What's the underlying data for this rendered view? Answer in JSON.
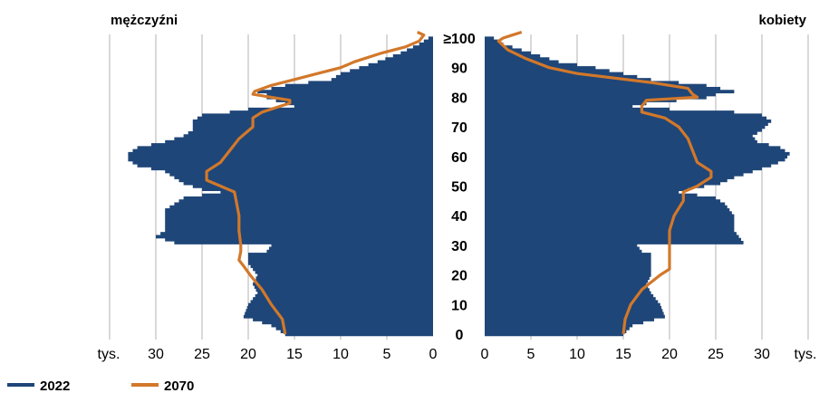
{
  "chart_data": {
    "type": "population-pyramid",
    "panels": {
      "left_title": "mężczyźni",
      "right_title": "kobiety"
    },
    "x_axis": {
      "unit": "tys.",
      "ticks_left": [
        "30",
        "25",
        "20",
        "15",
        "10",
        "5",
        "0"
      ],
      "ticks_right": [
        "0",
        "5",
        "10",
        "15",
        "20",
        "25",
        "30"
      ],
      "range": [
        0,
        35
      ]
    },
    "y_axis": {
      "labels": [
        "0",
        "10",
        "20",
        "30",
        "40",
        "50",
        "60",
        "70",
        "80",
        "90",
        "≥100"
      ],
      "range": [
        0,
        100
      ]
    },
    "legend": [
      {
        "label": "2022",
        "color": "#1f4678"
      },
      {
        "label": "2070",
        "color": "#d2782a"
      }
    ],
    "series_2022": {
      "men": [
        [
          0,
          16
        ],
        [
          3,
          17.5
        ],
        [
          6,
          20.5
        ],
        [
          10,
          20
        ],
        [
          14,
          19
        ],
        [
          17,
          19.5
        ],
        [
          20,
          19
        ],
        [
          24,
          20
        ],
        [
          27,
          20
        ],
        [
          28,
          18
        ],
        [
          30,
          17.5
        ],
        [
          31,
          28
        ],
        [
          33,
          30
        ],
        [
          35,
          29
        ],
        [
          37,
          29
        ],
        [
          40,
          29
        ],
        [
          42,
          29
        ],
        [
          44,
          28
        ],
        [
          46,
          27
        ],
        [
          47,
          25
        ],
        [
          48,
          23
        ],
        [
          49,
          25
        ],
        [
          51,
          27
        ],
        [
          53,
          28
        ],
        [
          55,
          29
        ],
        [
          57,
          32
        ],
        [
          59,
          33
        ],
        [
          61,
          33
        ],
        [
          63,
          32
        ],
        [
          65,
          29
        ],
        [
          67,
          27
        ],
        [
          69,
          26
        ],
        [
          72,
          26
        ],
        [
          74,
          25
        ],
        [
          75,
          22
        ],
        [
          76,
          20
        ],
        [
          77,
          15
        ],
        [
          78,
          16
        ],
        [
          80,
          18
        ],
        [
          81,
          18
        ],
        [
          82,
          19
        ],
        [
          84,
          16
        ],
        [
          86,
          11
        ],
        [
          88,
          10
        ],
        [
          90,
          8
        ],
        [
          92,
          6
        ],
        [
          95,
          3.5
        ],
        [
          98,
          1.5
        ],
        [
          100,
          0.5
        ]
      ],
      "women": [
        [
          0,
          15
        ],
        [
          3,
          16
        ],
        [
          6,
          19.5
        ],
        [
          10,
          19
        ],
        [
          14,
          18
        ],
        [
          17,
          17.5
        ],
        [
          20,
          18
        ],
        [
          24,
          18
        ],
        [
          27,
          18
        ],
        [
          28,
          17
        ],
        [
          30,
          16.5
        ],
        [
          31,
          28
        ],
        [
          33,
          27.5
        ],
        [
          35,
          27
        ],
        [
          37,
          27
        ],
        [
          40,
          27
        ],
        [
          42,
          26.5
        ],
        [
          44,
          26
        ],
        [
          46,
          25
        ],
        [
          47,
          23
        ],
        [
          48,
          21
        ],
        [
          49,
          22
        ],
        [
          51,
          25.5
        ],
        [
          53,
          27
        ],
        [
          55,
          29
        ],
        [
          57,
          31
        ],
        [
          59,
          32.5
        ],
        [
          61,
          33
        ],
        [
          63,
          32
        ],
        [
          65,
          29.5
        ],
        [
          67,
          29
        ],
        [
          69,
          30
        ],
        [
          72,
          31
        ],
        [
          74,
          30
        ],
        [
          75,
          27
        ],
        [
          76,
          20
        ],
        [
          77,
          16
        ],
        [
          78,
          17.5
        ],
        [
          80,
          24
        ],
        [
          81,
          25
        ],
        [
          82,
          27
        ],
        [
          84,
          24
        ],
        [
          86,
          18
        ],
        [
          88,
          15
        ],
        [
          90,
          12
        ],
        [
          92,
          8
        ],
        [
          95,
          5
        ],
        [
          98,
          2
        ],
        [
          100,
          1
        ]
      ]
    },
    "series_2070": {
      "men": [
        [
          0,
          16
        ],
        [
          5,
          16.3
        ],
        [
          10,
          17.5
        ],
        [
          15,
          18.5
        ],
        [
          20,
          19.8
        ],
        [
          23,
          20.5
        ],
        [
          25,
          21
        ],
        [
          28,
          20.8
        ],
        [
          30,
          20.8
        ],
        [
          35,
          21
        ],
        [
          40,
          21
        ],
        [
          45,
          21.3
        ],
        [
          48,
          21.5
        ],
        [
          50,
          23
        ],
        [
          52,
          24.5
        ],
        [
          55,
          24.5
        ],
        [
          58,
          23
        ],
        [
          62,
          22
        ],
        [
          66,
          21
        ],
        [
          70,
          19.5
        ],
        [
          73,
          19.5
        ],
        [
          75,
          18.5
        ],
        [
          78,
          15.5
        ],
        [
          79,
          15.5
        ],
        [
          80,
          17.5
        ],
        [
          81,
          19.5
        ],
        [
          82,
          19.3
        ],
        [
          84,
          17.5
        ],
        [
          86,
          15
        ],
        [
          88,
          12.5
        ],
        [
          90,
          10
        ],
        [
          92,
          8.5
        ],
        [
          95,
          5.5
        ],
        [
          97,
          3
        ],
        [
          99,
          1.5
        ],
        [
          101,
          1
        ],
        [
          102,
          1.7
        ]
      ],
      "women": [
        [
          0,
          15
        ],
        [
          5,
          15.2
        ],
        [
          10,
          15.8
        ],
        [
          15,
          17
        ],
        [
          20,
          19
        ],
        [
          22,
          20
        ],
        [
          25,
          20
        ],
        [
          30,
          20
        ],
        [
          35,
          20
        ],
        [
          40,
          20.5
        ],
        [
          45,
          21.5
        ],
        [
          48,
          21.5
        ],
        [
          50,
          23
        ],
        [
          53,
          24.5
        ],
        [
          55,
          24.5
        ],
        [
          58,
          23
        ],
        [
          62,
          22.5
        ],
        [
          66,
          22
        ],
        [
          70,
          21
        ],
        [
          73,
          19.5
        ],
        [
          75,
          17
        ],
        [
          77,
          17
        ],
        [
          79,
          17.5
        ],
        [
          80,
          23
        ],
        [
          81,
          22.5
        ],
        [
          83,
          22
        ],
        [
          85,
          18
        ],
        [
          88,
          10
        ],
        [
          90,
          7
        ],
        [
          93,
          4.5
        ],
        [
          96,
          2.5
        ],
        [
          99,
          1.5
        ],
        [
          100,
          2
        ],
        [
          101,
          3
        ],
        [
          102,
          4
        ]
      ]
    }
  }
}
